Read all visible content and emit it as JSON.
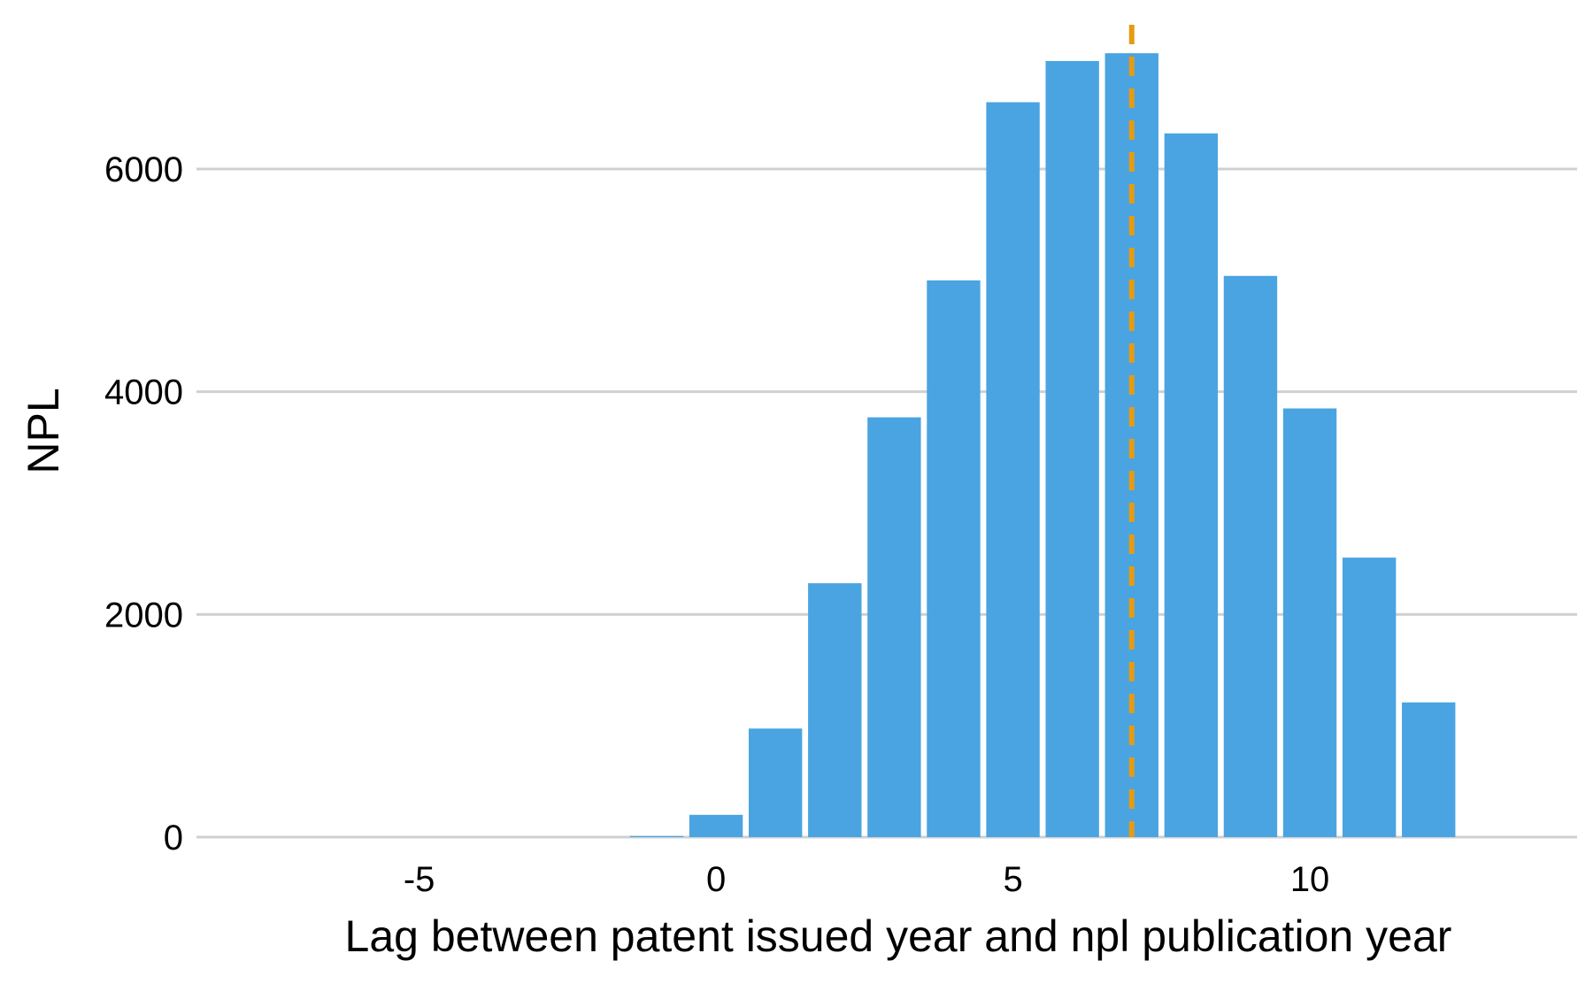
{
  "chart_data": {
    "type": "bar",
    "title": "",
    "xlabel": "Lag between patent issued year and npl publication year",
    "ylabel": "NPL",
    "x": [
      -8,
      -7,
      -6,
      -5,
      -4,
      -3,
      -2,
      -1,
      0,
      1,
      2,
      3,
      4,
      5,
      6,
      7,
      8,
      9,
      10,
      11,
      12
    ],
    "values": [
      0,
      0,
      0,
      0,
      0,
      0,
      0,
      10,
      200,
      975,
      2280,
      3770,
      5000,
      6600,
      6970,
      7040,
      6320,
      5040,
      3850,
      2510,
      1210
    ],
    "xlim": [
      -8.75,
      14.5
    ],
    "ylim": [
      0,
      7200
    ],
    "xticks": [
      -5,
      0,
      5,
      10
    ],
    "xtick_labels": [
      "-5",
      "0",
      "5",
      "10"
    ],
    "yticks": [
      0,
      2000,
      4000,
      6000
    ],
    "ytick_labels": [
      "0",
      "2000",
      "4000",
      "6000"
    ],
    "reference_line": {
      "x": 7,
      "style": "dashed"
    },
    "grid": "horizontal",
    "legend": "none",
    "colors": {
      "bar": "#4aa4e2",
      "reference_line": "#e69b12",
      "grid": "#d0d0d0"
    }
  }
}
